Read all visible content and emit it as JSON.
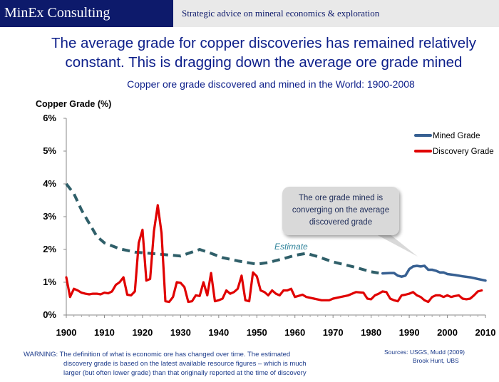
{
  "header": {
    "brand": "MinEx Consulting",
    "tagline": "Strategic advice on mineral economics & exploration"
  },
  "headline": {
    "line1": "The average grade for copper discoveries has remained relatively",
    "line2": "constant.  This is dragging down the average ore grade mined"
  },
  "subtitle": "Copper ore grade discovered and mined in the World: 1900-2008",
  "chart_data": {
    "type": "line",
    "ylabel": "Copper Grade (%)",
    "xlim": [
      1900,
      2010
    ],
    "ylim": [
      0,
      6
    ],
    "x_ticks": [
      1900,
      1910,
      1920,
      1930,
      1940,
      1950,
      1960,
      1970,
      1980,
      1990,
      2000,
      2010
    ],
    "y_ticks": [
      "0%",
      "1%",
      "2%",
      "3%",
      "4%",
      "5%",
      "6%"
    ],
    "legend_position": "top-right",
    "series": [
      {
        "name": "Mined Grade",
        "color": "#376092",
        "style": "solid",
        "points": [
          [
            1983,
            1.27
          ],
          [
            1985,
            1.28
          ],
          [
            1986,
            1.28
          ],
          [
            1987,
            1.2
          ],
          [
            1988,
            1.17
          ],
          [
            1989,
            1.2
          ],
          [
            1990,
            1.4
          ],
          [
            1991,
            1.48
          ],
          [
            1992,
            1.5
          ],
          [
            1993,
            1.48
          ],
          [
            1994,
            1.5
          ],
          [
            1995,
            1.38
          ],
          [
            1996,
            1.38
          ],
          [
            1997,
            1.35
          ],
          [
            1998,
            1.3
          ],
          [
            1999,
            1.3
          ],
          [
            2000,
            1.25
          ],
          [
            2002,
            1.22
          ],
          [
            2004,
            1.18
          ],
          [
            2006,
            1.15
          ],
          [
            2008,
            1.1
          ],
          [
            2010,
            1.05
          ]
        ]
      },
      {
        "name": "",
        "color": "#2f5f69",
        "style": "dashed",
        "points": [
          [
            1900,
            4.0
          ],
          [
            1902,
            3.7
          ],
          [
            1904,
            3.2
          ],
          [
            1906,
            2.8
          ],
          [
            1908,
            2.4
          ],
          [
            1910,
            2.2
          ],
          [
            1914,
            2.02
          ],
          [
            1918,
            1.92
          ],
          [
            1922,
            1.88
          ],
          [
            1926,
            1.84
          ],
          [
            1930,
            1.8
          ],
          [
            1933,
            1.92
          ],
          [
            1935,
            2.0
          ],
          [
            1938,
            1.88
          ],
          [
            1941,
            1.75
          ],
          [
            1945,
            1.65
          ],
          [
            1950,
            1.55
          ],
          [
            1953,
            1.6
          ],
          [
            1957,
            1.72
          ],
          [
            1960,
            1.82
          ],
          [
            1963,
            1.88
          ],
          [
            1966,
            1.78
          ],
          [
            1970,
            1.62
          ],
          [
            1975,
            1.48
          ],
          [
            1980,
            1.32
          ],
          [
            1982,
            1.28
          ]
        ]
      },
      {
        "name": "Discovery Grade",
        "color": "#e00000",
        "style": "solid",
        "points": [
          [
            1900,
            1.15
          ],
          [
            1901,
            0.55
          ],
          [
            1902,
            0.8
          ],
          [
            1903,
            0.75
          ],
          [
            1904,
            0.68
          ],
          [
            1905,
            0.65
          ],
          [
            1906,
            0.63
          ],
          [
            1907,
            0.65
          ],
          [
            1908,
            0.65
          ],
          [
            1909,
            0.63
          ],
          [
            1910,
            0.68
          ],
          [
            1911,
            0.66
          ],
          [
            1912,
            0.72
          ],
          [
            1913,
            0.92
          ],
          [
            1914,
            1.0
          ],
          [
            1915,
            1.15
          ],
          [
            1916,
            0.62
          ],
          [
            1917,
            0.6
          ],
          [
            1918,
            0.72
          ],
          [
            1919,
            2.2
          ],
          [
            1920,
            2.6
          ],
          [
            1921,
            1.05
          ],
          [
            1922,
            1.1
          ],
          [
            1923,
            2.55
          ],
          [
            1924,
            3.35
          ],
          [
            1925,
            2.5
          ],
          [
            1926,
            0.42
          ],
          [
            1927,
            0.4
          ],
          [
            1928,
            0.55
          ],
          [
            1929,
            1.0
          ],
          [
            1930,
            0.98
          ],
          [
            1931,
            0.85
          ],
          [
            1932,
            0.4
          ],
          [
            1933,
            0.42
          ],
          [
            1934,
            0.6
          ],
          [
            1935,
            0.58
          ],
          [
            1936,
            1.0
          ],
          [
            1937,
            0.6
          ],
          [
            1938,
            1.28
          ],
          [
            1939,
            0.42
          ],
          [
            1940,
            0.45
          ],
          [
            1941,
            0.5
          ],
          [
            1942,
            0.75
          ],
          [
            1943,
            0.65
          ],
          [
            1944,
            0.7
          ],
          [
            1945,
            0.8
          ],
          [
            1946,
            1.2
          ],
          [
            1947,
            0.45
          ],
          [
            1948,
            0.42
          ],
          [
            1949,
            1.3
          ],
          [
            1950,
            1.18
          ],
          [
            1951,
            0.75
          ],
          [
            1952,
            0.7
          ],
          [
            1953,
            0.6
          ],
          [
            1954,
            0.75
          ],
          [
            1955,
            0.65
          ],
          [
            1956,
            0.6
          ],
          [
            1957,
            0.75
          ],
          [
            1958,
            0.75
          ],
          [
            1959,
            0.8
          ],
          [
            1960,
            0.55
          ],
          [
            1962,
            0.62
          ],
          [
            1963,
            0.55
          ],
          [
            1965,
            0.5
          ],
          [
            1967,
            0.45
          ],
          [
            1969,
            0.45
          ],
          [
            1970,
            0.5
          ],
          [
            1972,
            0.55
          ],
          [
            1974,
            0.6
          ],
          [
            1975,
            0.65
          ],
          [
            1976,
            0.7
          ],
          [
            1978,
            0.68
          ],
          [
            1979,
            0.5
          ],
          [
            1980,
            0.48
          ],
          [
            1981,
            0.6
          ],
          [
            1982,
            0.65
          ],
          [
            1983,
            0.72
          ],
          [
            1984,
            0.7
          ],
          [
            1985,
            0.5
          ],
          [
            1986,
            0.45
          ],
          [
            1987,
            0.42
          ],
          [
            1988,
            0.6
          ],
          [
            1989,
            0.62
          ],
          [
            1990,
            0.65
          ],
          [
            1991,
            0.7
          ],
          [
            1992,
            0.6
          ],
          [
            1993,
            0.55
          ],
          [
            1994,
            0.45
          ],
          [
            1995,
            0.4
          ],
          [
            1996,
            0.55
          ],
          [
            1997,
            0.6
          ],
          [
            1998,
            0.6
          ],
          [
            1999,
            0.55
          ],
          [
            2000,
            0.6
          ],
          [
            2001,
            0.55
          ],
          [
            2002,
            0.58
          ],
          [
            2003,
            0.6
          ],
          [
            2004,
            0.5
          ],
          [
            2005,
            0.48
          ],
          [
            2006,
            0.5
          ],
          [
            2007,
            0.6
          ],
          [
            2008,
            0.72
          ],
          [
            2009,
            0.75
          ]
        ]
      }
    ],
    "annotations": {
      "estimate": "Estimate",
      "callout": [
        "The ore grade mined is",
        "converging on the average",
        "discovered grade"
      ]
    }
  },
  "footer": {
    "warning_line1": "WARNING: The definition of what is economic ore has changed over time. The estimated",
    "warning_line2": "discovery grade is based on the latest available resource figures – which is much",
    "warning_line3": "larger (but  often lower grade) than that originally reported at the time of discovery",
    "sources_line1": "Sources:  USGS, Mudd (2009)",
    "sources_line2": "Brook Hunt, UBS"
  }
}
